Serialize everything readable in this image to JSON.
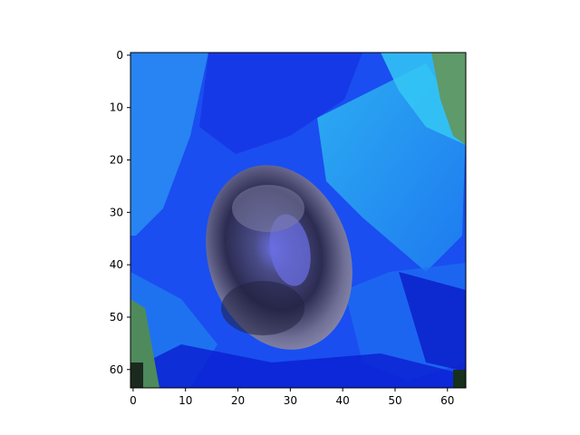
{
  "chart_data": {
    "type": "heatmap",
    "subtype": "image (imshow)",
    "title": "",
    "xlabel": "",
    "ylabel": "",
    "image_size": [
      64,
      64
    ],
    "xlim": [
      -0.5,
      63.5
    ],
    "ylim": [
      63.5,
      -0.5
    ],
    "y_axis_inverted": true,
    "grid": false,
    "x_ticks": [
      0,
      10,
      20,
      30,
      40,
      50,
      60
    ],
    "y_ticks": [
      0,
      10,
      20,
      30,
      40,
      50,
      60
    ],
    "x_tick_labels": [
      "0",
      "10",
      "20",
      "30",
      "40",
      "50",
      "60"
    ],
    "y_tick_labels": [
      "0",
      "10",
      "20",
      "30",
      "40",
      "50",
      "60"
    ],
    "dominant_colors": {
      "petal_blue": "#1a4ef0",
      "petal_light": "#2fb8f2",
      "petal_deep": "#0a1fd8",
      "center_dark": "#2c2c52",
      "center_light": "#8e8fb0",
      "stigma_violet": "#6a6ee0",
      "foliage_green": "#5e9a6a"
    }
  }
}
